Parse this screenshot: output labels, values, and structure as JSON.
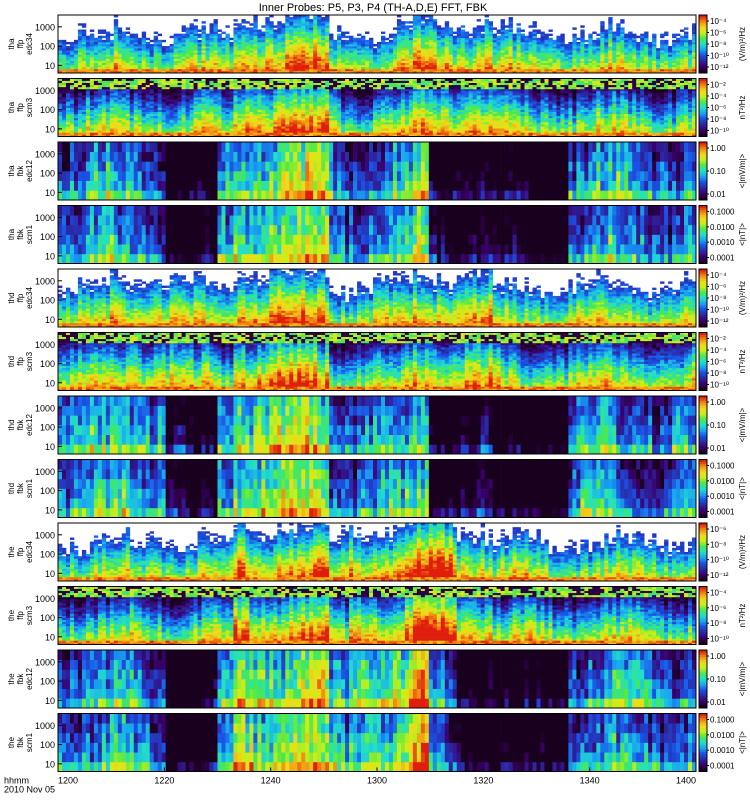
{
  "title": "Inner Probes: P5, P3, P4 (TH-A,D,E) FFT, FBK",
  "colors": {
    "colormap": [
      "#1a001f",
      "#3b006e",
      "#2a2aa6",
      "#1a52e6",
      "#19a7f0",
      "#22e0c8",
      "#4be84b",
      "#c9ef1a",
      "#f3d81a",
      "#f08a12",
      "#e01e0e"
    ],
    "void": "#ffffff",
    "axis": "#000000"
  },
  "chart_data": {
    "type": "heatmap",
    "title": "Inner Probes: P5, P3, P4 (TH-A,D,E) FFT, FBK",
    "x_axis": {
      "ticks": [
        "1200",
        "1220",
        "1240",
        "1300",
        "1320",
        "1340",
        "1400"
      ],
      "tick_minutes": [
        0,
        20,
        40,
        60,
        80,
        100,
        120
      ],
      "range_minutes": [
        0,
        120
      ],
      "label_lines": [
        "hhmm",
        "2010 Nov 05"
      ]
    },
    "panels": [
      {
        "label": [
          "tha",
          "ffp",
          "edc34"
        ],
        "probe": "tha",
        "kind": "fft_e",
        "y_ticks": [
          "1000",
          "100",
          "10"
        ],
        "cbar_ticks": [
          "10⁻⁴",
          "10⁻⁶",
          "10⁻⁸",
          "10⁻¹⁰",
          "10⁻¹²"
        ],
        "cbar_label": "(V/m)²/Hz"
      },
      {
        "label": [
          "tha",
          "ffp",
          "scm3"
        ],
        "probe": "tha",
        "kind": "fft_b",
        "y_ticks": [
          "1000",
          "100",
          "10"
        ],
        "cbar_ticks": [
          "10⁻²",
          "10⁻⁴",
          "10⁻⁶",
          "10⁻⁸",
          "10⁻¹⁰"
        ],
        "cbar_label": "nT²/Hz"
      },
      {
        "label": [
          "tha",
          "fbk",
          "edc12"
        ],
        "probe": "tha",
        "kind": "fbk_e",
        "y_ticks": [
          "1000",
          "100",
          "10"
        ],
        "cbar_ticks": [
          "1.00",
          "0.10",
          "0.01"
        ],
        "cbar_label": "<|mV/m|>"
      },
      {
        "label": [
          "tha",
          "fbk",
          "scm1"
        ],
        "probe": "tha",
        "kind": "fbk_b",
        "y_ticks": [
          "1000",
          "100",
          "10"
        ],
        "cbar_ticks": [
          "0.1000",
          "0.0100",
          "0.0010",
          "0.0001"
        ],
        "cbar_label": "<|nT|>"
      },
      {
        "label": [
          "thd",
          "ffp",
          "edc34"
        ],
        "probe": "thd",
        "kind": "fft_e",
        "y_ticks": [
          "1000",
          "100",
          "10"
        ],
        "cbar_ticks": [
          "10⁻⁴",
          "10⁻⁶",
          "10⁻⁸",
          "10⁻¹⁰",
          "10⁻¹²"
        ],
        "cbar_label": "(V/m)²/Hz"
      },
      {
        "label": [
          "thd",
          "ffp",
          "scm3"
        ],
        "probe": "thd",
        "kind": "fft_b",
        "y_ticks": [
          "1000",
          "100",
          "10"
        ],
        "cbar_ticks": [
          "10⁻²",
          "10⁻⁴",
          "10⁻⁶",
          "10⁻⁸",
          "10⁻¹⁰"
        ],
        "cbar_label": "nT²/Hz"
      },
      {
        "label": [
          "thd",
          "fbk",
          "edc12"
        ],
        "probe": "thd",
        "kind": "fbk_e",
        "y_ticks": [
          "1000",
          "100",
          "10"
        ],
        "cbar_ticks": [
          "1.00",
          "0.10",
          "0.01"
        ],
        "cbar_label": "<|mV/m|>"
      },
      {
        "label": [
          "thd",
          "fbk",
          "scm1"
        ],
        "probe": "thd",
        "kind": "fbk_b",
        "y_ticks": [
          "1000",
          "100",
          "10"
        ],
        "cbar_ticks": [
          "0.1000",
          "0.0100",
          "0.0010",
          "0.0001"
        ],
        "cbar_label": "<|nT|>"
      },
      {
        "label": [
          "the",
          "ffp",
          "edc34"
        ],
        "probe": "the",
        "kind": "fft_e",
        "y_ticks": [
          "1000",
          "100",
          "10"
        ],
        "cbar_ticks": [
          "10⁻⁶",
          "10⁻⁸",
          "10⁻¹⁰",
          "10⁻¹²"
        ],
        "cbar_label": "(V/m)²/Hz"
      },
      {
        "label": [
          "the",
          "ffp",
          "scm3"
        ],
        "probe": "the",
        "kind": "fft_b",
        "y_ticks": [
          "1000",
          "100",
          "10"
        ],
        "cbar_ticks": [
          "10⁻⁴",
          "10⁻⁶",
          "10⁻⁸",
          "10⁻¹⁰"
        ],
        "cbar_label": "nT²/Hz"
      },
      {
        "label": [
          "the",
          "fbk",
          "edc12"
        ],
        "probe": "the",
        "kind": "fbk_e",
        "y_ticks": [
          "1000",
          "100",
          "10"
        ],
        "cbar_ticks": [
          "1.00",
          "0.10",
          "0.01"
        ],
        "cbar_label": "<|mV/m|>"
      },
      {
        "label": [
          "the",
          "fbk",
          "scm1"
        ],
        "probe": "the",
        "kind": "fbk_b",
        "y_ticks": [
          "1000",
          "100",
          "10"
        ],
        "cbar_ticks": [
          "0.1000",
          "0.0100",
          "0.0010",
          "0.0001"
        ],
        "cbar_label": "<|nT|>"
      }
    ]
  }
}
